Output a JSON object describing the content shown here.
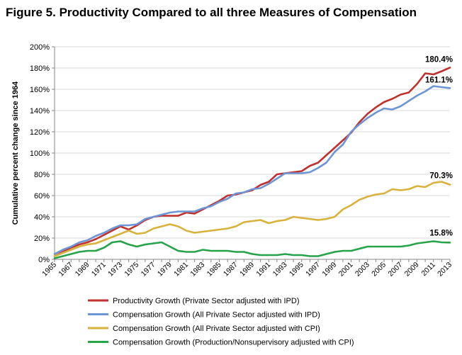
{
  "chart_data": {
    "type": "line",
    "title": "Figure 5. Productivity Compared to all three Measures of Compensation",
    "ylabel": "Cumulative percent change since 1964",
    "xlabel": "",
    "ylim": [
      0,
      200
    ],
    "yticks": [
      "0%",
      "20%",
      "40%",
      "60%",
      "80%",
      "100%",
      "120%",
      "140%",
      "160%",
      "180%",
      "200%"
    ],
    "x": [
      1965,
      1966,
      1967,
      1968,
      1969,
      1970,
      1971,
      1972,
      1973,
      1974,
      1975,
      1976,
      1977,
      1978,
      1979,
      1980,
      1981,
      1982,
      1983,
      1984,
      1985,
      1986,
      1987,
      1988,
      1989,
      1990,
      1991,
      1992,
      1993,
      1994,
      1995,
      1996,
      1997,
      1998,
      1999,
      2000,
      2001,
      2002,
      2003,
      2004,
      2005,
      2006,
      2007,
      2008,
      2009,
      2010,
      2011,
      2012,
      2013
    ],
    "xtick_labels": [
      "1965",
      "1967",
      "1969",
      "1971",
      "1973",
      "1975",
      "1977",
      "1979",
      "1981",
      "1983",
      "1985",
      "1987",
      "1989",
      "1991",
      "1993",
      "1995",
      "1997",
      "1999",
      "2001",
      "2003",
      "2005",
      "2007",
      "2009",
      "2011",
      "2013"
    ],
    "grid": true,
    "legend_position": "bottom",
    "series": [
      {
        "name": "Productivity Growth (Private Sector adjusted with IPD)",
        "color": "#c0312e",
        "end_label": "180.4%",
        "values": [
          3,
          7,
          11,
          14,
          16,
          19,
          23,
          27,
          31,
          28,
          32,
          37,
          40,
          41,
          41,
          41,
          44,
          43,
          47,
          51,
          55,
          60,
          61,
          63,
          65,
          70,
          73,
          80,
          81,
          82,
          83,
          88,
          91,
          98,
          105,
          112,
          119,
          129,
          137,
          143,
          148,
          151,
          155,
          157,
          165,
          175,
          174,
          177,
          180.4
        ]
      },
      {
        "name": "Compensation Growth (All Private Sector adjusted with IPD)",
        "color": "#6d95d6",
        "end_label": "161.1%",
        "values": [
          5,
          9,
          12,
          16,
          18,
          22,
          25,
          29,
          32,
          32,
          33,
          38,
          40,
          42,
          44,
          45,
          45,
          45,
          48,
          50,
          54,
          57,
          62,
          63,
          66,
          67,
          71,
          76,
          81,
          81,
          81,
          82,
          86,
          91,
          101,
          108,
          120,
          127,
          133,
          138,
          142,
          141,
          144,
          149,
          154,
          158,
          163,
          162,
          161.1
        ]
      },
      {
        "name": "Compensation Growth (All Private Sector adjusted with CPI)",
        "color": "#d9b23b",
        "end_label": "70.3%",
        "values": [
          3,
          6,
          9,
          12,
          14,
          15,
          18,
          21,
          24,
          27,
          24,
          25,
          29,
          31,
          33,
          31,
          27,
          25,
          26,
          27,
          28,
          29,
          31,
          35,
          36,
          37,
          34,
          36,
          37,
          40,
          39,
          38,
          37,
          38,
          40,
          47,
          51,
          56,
          59,
          61,
          62,
          66,
          65,
          66,
          69,
          68,
          72,
          73,
          70.3
        ]
      },
      {
        "name": "Compensation Growth (Production/Nonsupervisory adjusted with CPI)",
        "color": "#27a349",
        "end_label": "15.8%",
        "values": [
          1,
          3,
          5,
          7,
          8,
          8,
          11,
          16,
          17,
          14,
          12,
          14,
          15,
          16,
          12,
          8,
          7,
          7,
          9,
          8,
          8,
          8,
          7,
          7,
          5,
          4,
          4,
          4,
          5,
          4,
          4,
          3,
          3,
          5,
          7,
          8,
          8,
          10,
          12,
          12,
          12,
          12,
          12,
          13,
          15,
          16,
          17,
          16,
          15.8
        ]
      }
    ]
  }
}
